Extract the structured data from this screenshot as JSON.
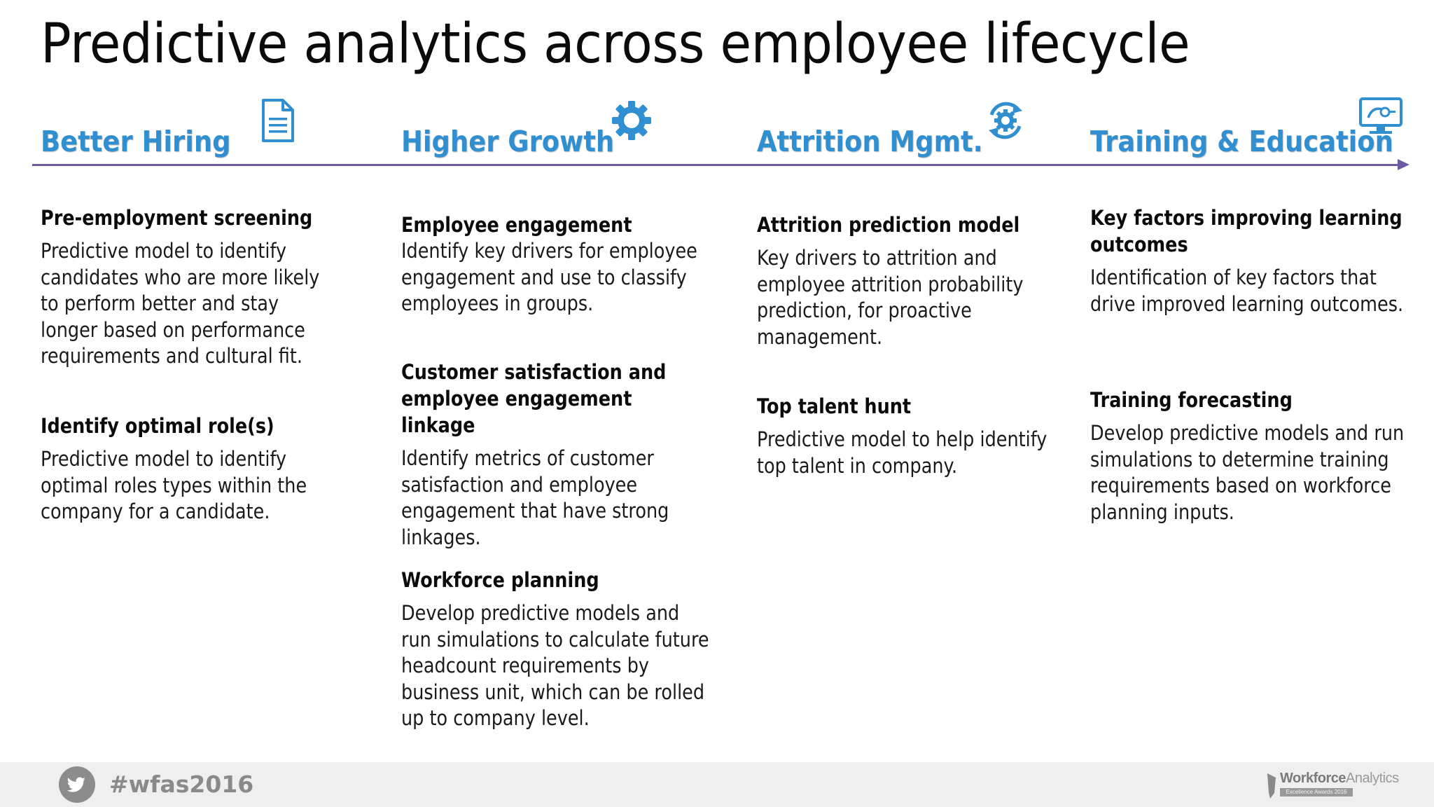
{
  "title": "Predictive analytics across employee lifecycle",
  "colors": {
    "accent": "#2f8fd1",
    "timeline": "#6e5aa0",
    "footer_bg": "#efefef"
  },
  "columns": [
    {
      "heading": "Better Hiring",
      "icon": "document-icon",
      "items": [
        {
          "title": "Pre-employment screening",
          "desc": "Predictive model to identify candidates who are more likely to perform better and stay longer based on performance requirements and cultural fit."
        },
        {
          "title": "Identify optimal role(s)",
          "desc": "Predictive model to identify optimal roles types within the company for a candidate."
        }
      ]
    },
    {
      "heading": "Higher Growth",
      "icon": "gear-icon",
      "items": [
        {
          "title": "Employee engagement",
          "desc": "Identify key drivers for employee engagement and use to classify employees in groups."
        },
        {
          "title": "Customer satisfaction and employee engagement linkage",
          "desc": "Identify metrics of customer satisfaction and employee engagement that have strong linkages."
        },
        {
          "title": "Workforce planning",
          "desc": "Develop predictive models and run simulations to calculate future headcount requirements by business unit, which can be rolled up to company level."
        }
      ]
    },
    {
      "heading": "Attrition Mgmt.",
      "icon": "refresh-gear-icon",
      "items": [
        {
          "title": "Attrition prediction model",
          "desc": "Key drivers to attrition and employee attrition probability prediction, for proactive management."
        },
        {
          "title": "Top talent hunt",
          "desc": "Predictive model to help identify top talent in company."
        }
      ]
    },
    {
      "heading": "Training & Education",
      "icon": "monitor-icon",
      "items": [
        {
          "title": "Key factors improving learning outcomes",
          "desc": "Identification of key factors that drive improved learning outcomes."
        },
        {
          "title": "Training forecasting",
          "desc": "Develop predictive models and run simulations to determine training requirements based on workforce planning inputs."
        }
      ]
    }
  ],
  "footer": {
    "hashtag": "#wfas2016",
    "brand_bold": "Workforce",
    "brand_light": "Analytics",
    "brand_sub": "Excellence Awards 2016"
  }
}
